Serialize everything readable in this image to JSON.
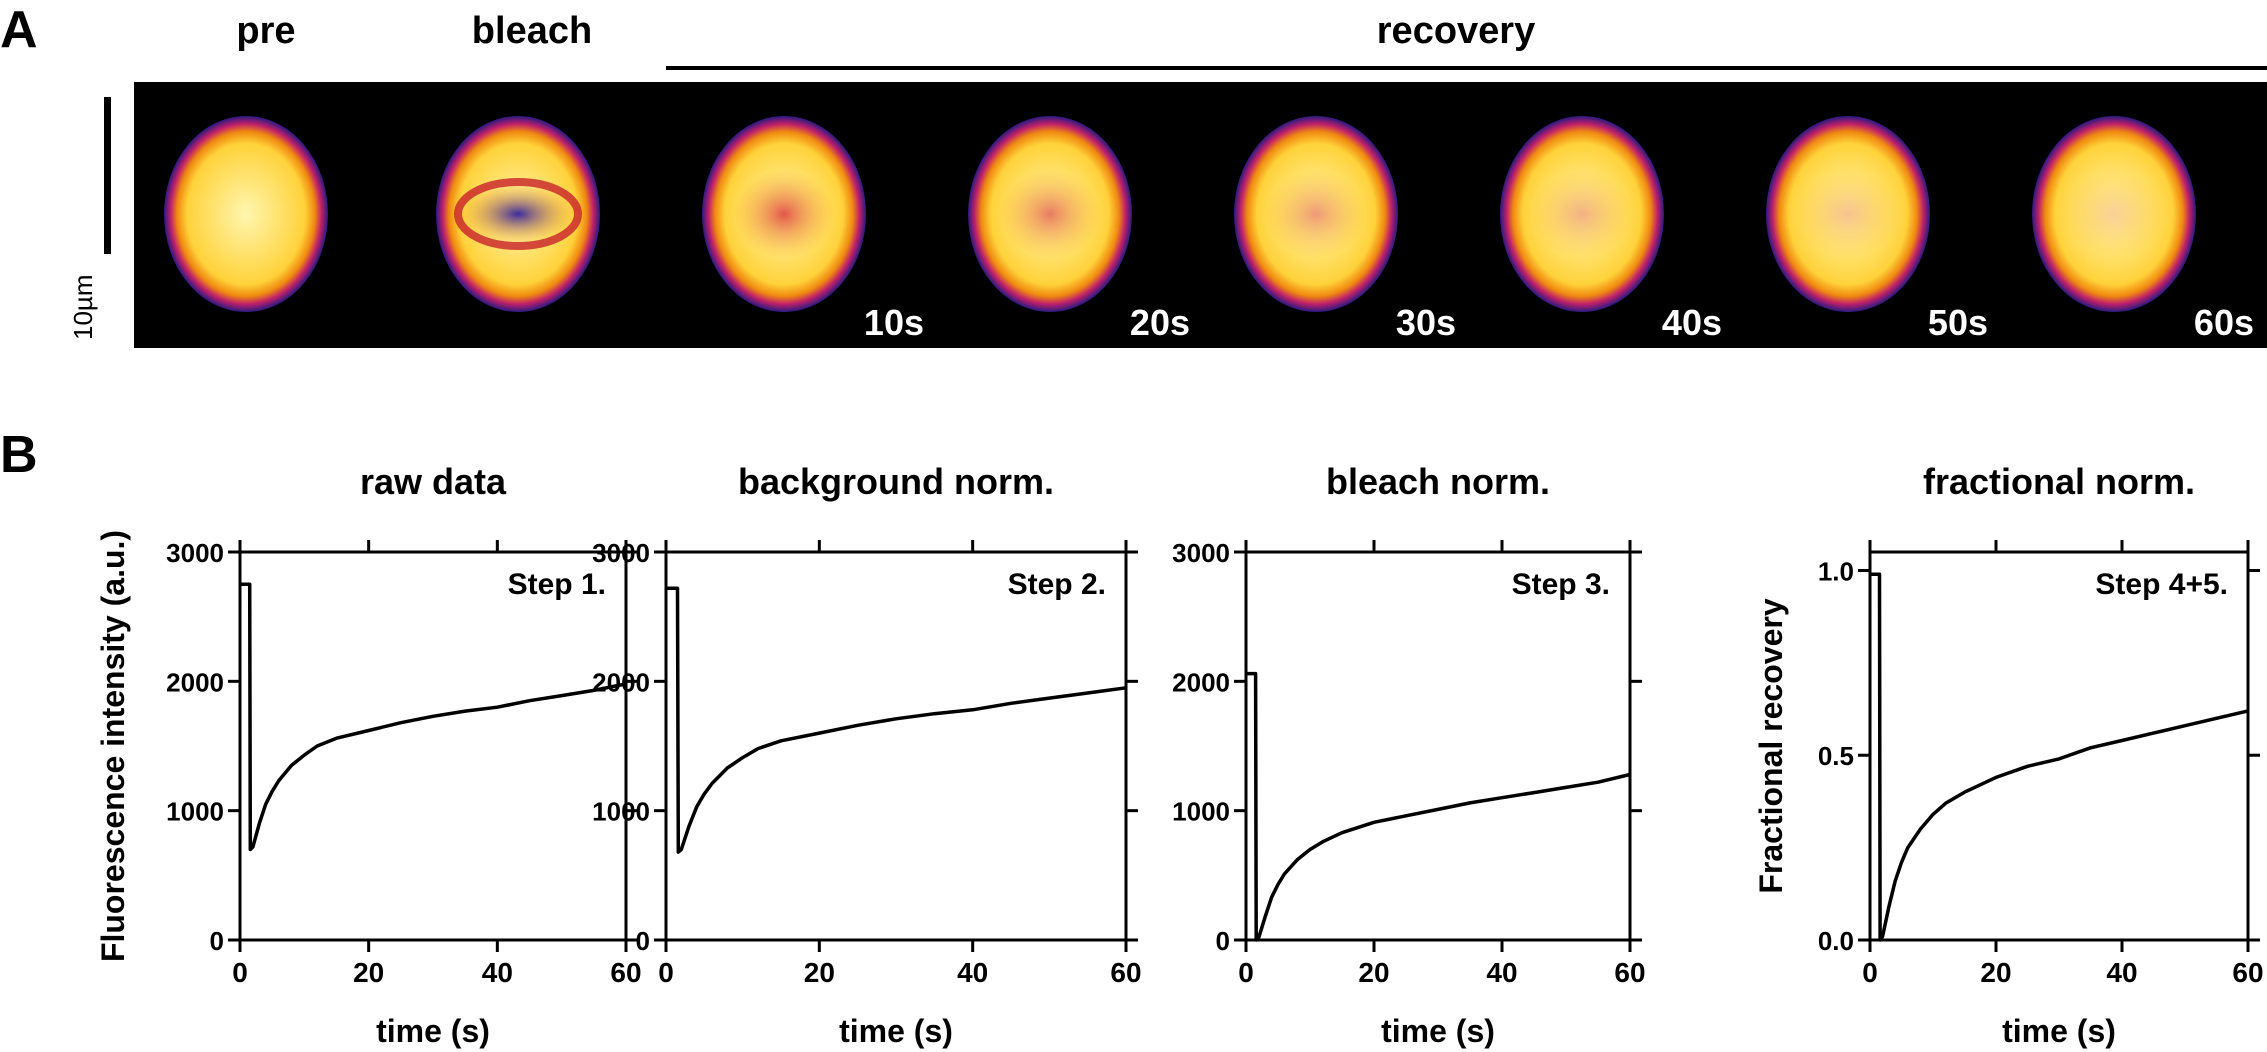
{
  "panel_a": {
    "letter": "A",
    "labels": {
      "pre": "pre",
      "bleach": "bleach",
      "recovery": "recovery"
    },
    "scale_bar_label": "10µm",
    "frames": [
      {
        "name": "pre",
        "bleach_level": 0.0,
        "time": ""
      },
      {
        "name": "bleach",
        "bleach_level": 1.0,
        "time": ""
      },
      {
        "name": "10s",
        "bleach_level": 0.62,
        "time": "10s"
      },
      {
        "name": "20s",
        "bleach_level": 0.48,
        "time": "20s"
      },
      {
        "name": "30s",
        "bleach_level": 0.36,
        "time": "30s"
      },
      {
        "name": "40s",
        "bleach_level": 0.27,
        "time": "40s"
      },
      {
        "name": "50s",
        "bleach_level": 0.2,
        "time": "50s"
      },
      {
        "name": "60s",
        "bleach_level": 0.15,
        "time": "60s"
      }
    ]
  },
  "panel_b": {
    "letter": "B"
  },
  "chart_data": [
    {
      "type": "line",
      "title": "raw data",
      "step": "Step 1.",
      "xlabel": "time (s)",
      "ylabel": "Fluorescence intensity (a.u.)",
      "xlim": [
        0,
        60
      ],
      "ylim": [
        0,
        3000
      ],
      "xticks": [
        0,
        20,
        40,
        60
      ],
      "yticks": [
        0,
        1000,
        2000,
        3000
      ],
      "ytick_labels": [
        "0",
        "1000",
        "2000",
        "3000"
      ],
      "series": [
        {
          "x": [
            0,
            1.5,
            1.6,
            2,
            3,
            4,
            5,
            6,
            8,
            10,
            12,
            15,
            20,
            25,
            30,
            35,
            40,
            45,
            50,
            55,
            60
          ],
          "y": [
            2750,
            2750,
            700,
            720,
            900,
            1050,
            1150,
            1230,
            1350,
            1430,
            1500,
            1560,
            1620,
            1680,
            1730,
            1770,
            1800,
            1850,
            1890,
            1930,
            1980
          ]
        }
      ]
    },
    {
      "type": "line",
      "title": "background norm.",
      "step": "Step 2.",
      "xlabel": "time (s)",
      "ylabel": "",
      "xlim": [
        0,
        60
      ],
      "ylim": [
        0,
        3000
      ],
      "xticks": [
        0,
        20,
        40,
        60
      ],
      "yticks": [
        0,
        1000,
        2000,
        3000
      ],
      "ytick_labels": [
        "0",
        "1000",
        "2000",
        "3000"
      ],
      "series": [
        {
          "x": [
            0,
            1.5,
            1.6,
            2,
            3,
            4,
            5,
            6,
            8,
            10,
            12,
            15,
            20,
            25,
            30,
            35,
            40,
            45,
            50,
            55,
            60
          ],
          "y": [
            2720,
            2720,
            680,
            700,
            880,
            1030,
            1130,
            1210,
            1330,
            1410,
            1480,
            1540,
            1600,
            1660,
            1710,
            1750,
            1780,
            1830,
            1870,
            1910,
            1950
          ]
        }
      ]
    },
    {
      "type": "line",
      "title": "bleach norm.",
      "step": "Step 3.",
      "xlabel": "time (s)",
      "ylabel": "",
      "xlim": [
        0,
        60
      ],
      "ylim": [
        0,
        3000
      ],
      "xticks": [
        0,
        20,
        40,
        60
      ],
      "yticks": [
        0,
        1000,
        2000,
        3000
      ],
      "ytick_labels": [
        "0",
        "1000",
        "2000",
        "3000"
      ],
      "series": [
        {
          "x": [
            0,
            1.5,
            1.6,
            2,
            3,
            4,
            5,
            6,
            8,
            10,
            12,
            15,
            20,
            25,
            30,
            35,
            40,
            45,
            50,
            55,
            60
          ],
          "y": [
            2060,
            2060,
            0,
            20,
            180,
            330,
            430,
            510,
            620,
            700,
            760,
            830,
            910,
            960,
            1010,
            1060,
            1100,
            1140,
            1180,
            1220,
            1280
          ]
        }
      ]
    },
    {
      "type": "line",
      "title": "fractional norm.",
      "step": "Step 4+5.",
      "xlabel": "time (s)",
      "ylabel": "Fractional recovery",
      "xlim": [
        0,
        60
      ],
      "ylim": [
        0,
        1.05
      ],
      "xticks": [
        0,
        20,
        40,
        60
      ],
      "yticks": [
        0,
        0.5,
        1.0
      ],
      "ytick_labels": [
        "0.0",
        "0.5",
        "1.0"
      ],
      "series": [
        {
          "x": [
            0,
            1.5,
            1.6,
            2,
            3,
            4,
            5,
            6,
            8,
            10,
            12,
            15,
            20,
            25,
            30,
            35,
            40,
            45,
            50,
            55,
            60
          ],
          "y": [
            0.99,
            0.99,
            0,
            0.01,
            0.09,
            0.16,
            0.21,
            0.25,
            0.3,
            0.34,
            0.37,
            0.4,
            0.44,
            0.47,
            0.49,
            0.52,
            0.54,
            0.56,
            0.58,
            0.6,
            0.62
          ]
        }
      ]
    }
  ]
}
